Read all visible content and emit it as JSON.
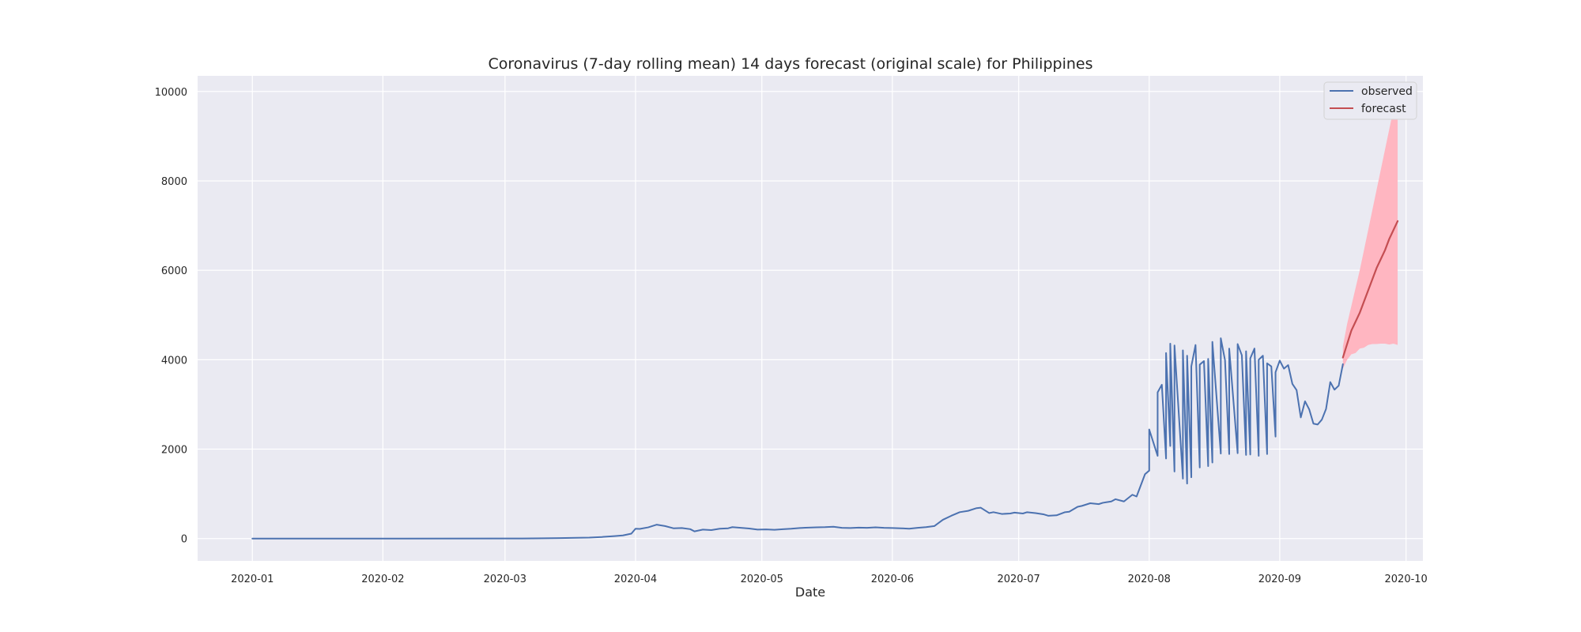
{
  "chart_data": {
    "type": "line",
    "title": "Coronavirus (7-day rolling mean) 14 days forecast (original scale) for Philippines",
    "xlabel": "Date",
    "ylabel": "",
    "x_type": "date",
    "xlim": [
      "2019-12-19",
      "2020-10-05"
    ],
    "ylim": [
      -500,
      10350
    ],
    "grid": true,
    "legend_position": "top-right",
    "x_ticks": [
      "2020-01-01",
      "2020-02-01",
      "2020-03-01",
      "2020-04-01",
      "2020-05-01",
      "2020-06-01",
      "2020-07-01",
      "2020-08-01",
      "2020-09-01",
      "2020-10-01"
    ],
    "x_tick_labels": [
      "2020-01",
      "2020-02",
      "2020-03",
      "2020-04",
      "2020-05",
      "2020-06",
      "2020-07",
      "2020-08",
      "2020-09",
      "2020-10"
    ],
    "y_ticks": [
      0,
      2000,
      4000,
      6000,
      8000,
      10000
    ],
    "y_tick_labels": [
      "0",
      "2000",
      "4000",
      "6000",
      "8000",
      "10000"
    ],
    "series": [
      {
        "name": "observed",
        "color": "#4c72b0",
        "points": [
          [
            "2020-01-01",
            0
          ],
          [
            "2020-02-01",
            0
          ],
          [
            "2020-03-01",
            1
          ],
          [
            "2020-03-05",
            2
          ],
          [
            "2020-03-10",
            5
          ],
          [
            "2020-03-14",
            10
          ],
          [
            "2020-03-18",
            18
          ],
          [
            "2020-03-21",
            22
          ],
          [
            "2020-03-24",
            35
          ],
          [
            "2020-03-27",
            55
          ],
          [
            "2020-03-29",
            70
          ],
          [
            "2020-03-31",
            110
          ],
          [
            "2020-04-01",
            220
          ],
          [
            "2020-04-02",
            215
          ],
          [
            "2020-04-04",
            250
          ],
          [
            "2020-04-06",
            310
          ],
          [
            "2020-04-08",
            280
          ],
          [
            "2020-04-10",
            230
          ],
          [
            "2020-04-12",
            235
          ],
          [
            "2020-04-14",
            210
          ],
          [
            "2020-04-15",
            160
          ],
          [
            "2020-04-17",
            200
          ],
          [
            "2020-04-19",
            190
          ],
          [
            "2020-04-21",
            220
          ],
          [
            "2020-04-23",
            230
          ],
          [
            "2020-04-24",
            255
          ],
          [
            "2020-04-26",
            240
          ],
          [
            "2020-04-28",
            225
          ],
          [
            "2020-04-30",
            200
          ],
          [
            "2020-05-02",
            205
          ],
          [
            "2020-05-04",
            195
          ],
          [
            "2020-05-06",
            210
          ],
          [
            "2020-05-08",
            220
          ],
          [
            "2020-05-10",
            235
          ],
          [
            "2020-05-12",
            245
          ],
          [
            "2020-05-14",
            250
          ],
          [
            "2020-05-16",
            255
          ],
          [
            "2020-05-18",
            265
          ],
          [
            "2020-05-20",
            240
          ],
          [
            "2020-05-22",
            235
          ],
          [
            "2020-05-24",
            245
          ],
          [
            "2020-05-26",
            240
          ],
          [
            "2020-05-28",
            250
          ],
          [
            "2020-05-30",
            240
          ],
          [
            "2020-06-01",
            235
          ],
          [
            "2020-06-03",
            230
          ],
          [
            "2020-06-05",
            220
          ],
          [
            "2020-06-07",
            240
          ],
          [
            "2020-06-09",
            255
          ],
          [
            "2020-06-11",
            280
          ],
          [
            "2020-06-13",
            420
          ],
          [
            "2020-06-15",
            510
          ],
          [
            "2020-06-17",
            590
          ],
          [
            "2020-06-19",
            620
          ],
          [
            "2020-06-21",
            680
          ],
          [
            "2020-06-22",
            690
          ],
          [
            "2020-06-24",
            570
          ],
          [
            "2020-06-25",
            590
          ],
          [
            "2020-06-27",
            550
          ],
          [
            "2020-06-29",
            560
          ],
          [
            "2020-06-30",
            580
          ],
          [
            "2020-07-02",
            560
          ],
          [
            "2020-07-03",
            590
          ],
          [
            "2020-07-05",
            570
          ],
          [
            "2020-07-07",
            540
          ],
          [
            "2020-07-08",
            510
          ],
          [
            "2020-07-10",
            520
          ],
          [
            "2020-07-12",
            590
          ],
          [
            "2020-07-13",
            600
          ],
          [
            "2020-07-15",
            710
          ],
          [
            "2020-07-16",
            730
          ],
          [
            "2020-07-18",
            790
          ],
          [
            "2020-07-20",
            770
          ],
          [
            "2020-07-21",
            800
          ],
          [
            "2020-07-23",
            830
          ],
          [
            "2020-07-24",
            880
          ],
          [
            "2020-07-26",
            830
          ],
          [
            "2020-07-28",
            980
          ],
          [
            "2020-07-29",
            940
          ],
          [
            "2020-07-31",
            1440
          ],
          [
            "2020-08-01",
            1520
          ],
          [
            "2020-08-03",
            1850
          ],
          [
            "2020-08-05",
            1790
          ],
          [
            "2020-08-06",
            2070
          ],
          [
            "2020-08-07",
            1500
          ],
          [
            "2020-08-09",
            1340
          ],
          [
            "2020-08-10",
            1230
          ],
          [
            "2020-08-11",
            1370
          ],
          [
            "2020-08-13",
            1590
          ],
          [
            "2020-08-15",
            1620
          ],
          [
            "2020-08-16",
            1700
          ],
          [
            "2020-08-18",
            1900
          ],
          [
            "2020-08-20",
            1890
          ],
          [
            "2020-08-22",
            1910
          ],
          [
            "2020-08-24",
            1870
          ],
          [
            "2020-08-25",
            1880
          ],
          [
            "2020-08-27",
            1850
          ],
          [
            "2020-08-29",
            1890
          ],
          [
            "2020-08-31",
            2280
          ],
          [
            "2020-08-01",
            2440
          ],
          [
            "2020-08-03",
            3270
          ],
          [
            "2020-08-04",
            3440
          ],
          [
            "2020-08-05",
            4150
          ],
          [
            "2020-08-06",
            4360
          ],
          [
            "2020-08-07",
            4320
          ],
          [
            "2020-08-09",
            4210
          ],
          [
            "2020-08-10",
            4090
          ],
          [
            "2020-08-11",
            3850
          ],
          [
            "2020-08-12",
            4330
          ],
          [
            "2020-08-13",
            3890
          ],
          [
            "2020-08-14",
            3970
          ],
          [
            "2020-08-15",
            4020
          ],
          [
            "2020-08-16",
            4400
          ],
          [
            "2020-08-18",
            4480
          ],
          [
            "2020-08-19",
            3990
          ],
          [
            "2020-08-20",
            4250
          ],
          [
            "2020-08-22",
            4350
          ],
          [
            "2020-08-23",
            4100
          ],
          [
            "2020-08-24",
            4190
          ],
          [
            "2020-08-25",
            4030
          ],
          [
            "2020-08-26",
            4250
          ],
          [
            "2020-08-27",
            4000
          ],
          [
            "2020-08-28",
            4090
          ],
          [
            "2020-08-29",
            3920
          ],
          [
            "2020-08-30",
            3850
          ],
          [
            "2020-08-31",
            3720
          ],
          [
            "2020-09-01",
            3980
          ],
          [
            "2020-09-02",
            3800
          ],
          [
            "2020-09-03",
            3880
          ],
          [
            "2020-09-04",
            3460
          ],
          [
            "2020-09-05",
            3320
          ],
          [
            "2020-09-06",
            2710
          ],
          [
            "2020-09-07",
            3070
          ],
          [
            "2020-09-08",
            2890
          ],
          [
            "2020-09-09",
            2570
          ],
          [
            "2020-09-10",
            2550
          ],
          [
            "2020-09-11",
            2660
          ],
          [
            "2020-09-12",
            2900
          ],
          [
            "2020-09-13",
            3500
          ],
          [
            "2020-09-14",
            3330
          ],
          [
            "2020-09-15",
            3420
          ],
          [
            "2020-09-16",
            3900
          ]
        ]
      },
      {
        "name": "forecast",
        "color": "#c44e52",
        "points": [
          [
            "2020-09-16",
            4050
          ],
          [
            "2020-09-17",
            4350
          ],
          [
            "2020-09-18",
            4650
          ],
          [
            "2020-09-19",
            4850
          ],
          [
            "2020-09-20",
            5050
          ],
          [
            "2020-09-21",
            5300
          ],
          [
            "2020-09-22",
            5550
          ],
          [
            "2020-09-23",
            5800
          ],
          [
            "2020-09-24",
            6050
          ],
          [
            "2020-09-25",
            6250
          ],
          [
            "2020-09-26",
            6450
          ],
          [
            "2020-09-27",
            6700
          ],
          [
            "2020-09-28",
            6900
          ],
          [
            "2020-09-29",
            7100
          ]
        ]
      }
    ],
    "confidence_band": {
      "color": "#ffb6c1",
      "upper": [
        [
          "2020-09-16",
          4300
        ],
        [
          "2020-09-17",
          4800
        ],
        [
          "2020-09-18",
          5200
        ],
        [
          "2020-09-19",
          5600
        ],
        [
          "2020-09-20",
          6000
        ],
        [
          "2020-09-21",
          6450
        ],
        [
          "2020-09-22",
          6900
        ],
        [
          "2020-09-23",
          7350
        ],
        [
          "2020-09-24",
          7800
        ],
        [
          "2020-09-25",
          8250
        ],
        [
          "2020-09-26",
          8700
        ],
        [
          "2020-09-27",
          9150
        ],
        [
          "2020-09-28",
          9600
        ],
        [
          "2020-09-29",
          10000
        ]
      ],
      "lower": [
        [
          "2020-09-16",
          3800
        ],
        [
          "2020-09-17",
          4000
        ],
        [
          "2020-09-18",
          4120
        ],
        [
          "2020-09-19",
          4150
        ],
        [
          "2020-09-20",
          4250
        ],
        [
          "2020-09-21",
          4270
        ],
        [
          "2020-09-22",
          4330
        ],
        [
          "2020-09-23",
          4350
        ],
        [
          "2020-09-24",
          4350
        ],
        [
          "2020-09-25",
          4360
        ],
        [
          "2020-09-26",
          4360
        ],
        [
          "2020-09-27",
          4340
        ],
        [
          "2020-09-28",
          4360
        ],
        [
          "2020-09-29",
          4330
        ]
      ]
    }
  },
  "colors": {
    "background": "#ffffff",
    "plot_background": "#eaeaf2",
    "grid": "#ffffff",
    "text": "#262626"
  }
}
